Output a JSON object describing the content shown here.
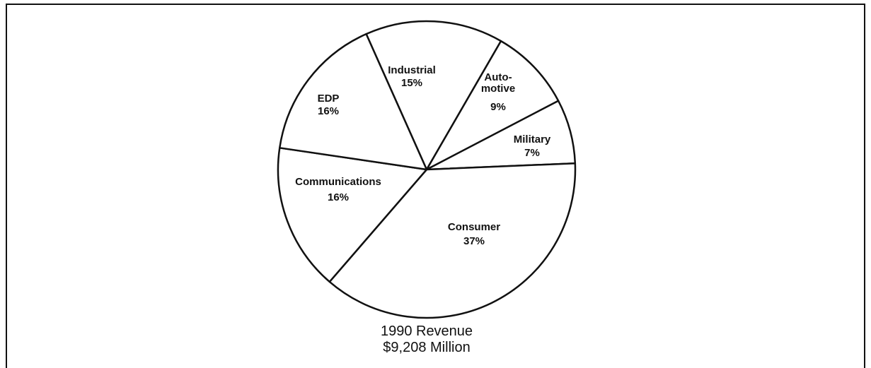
{
  "chart_data": {
    "type": "pie",
    "title": "1990 Revenue",
    "subtitle": "$9,208 Million",
    "categories": [
      "Industrial",
      "Auto-motive",
      "Military",
      "Consumer",
      "Communications",
      "EDP"
    ],
    "values": [
      15,
      9,
      7,
      37,
      16,
      16
    ],
    "value_labels": [
      "15%",
      "9%",
      "7%",
      "37%",
      "16%",
      "16%"
    ],
    "color": "#ffffff"
  }
}
